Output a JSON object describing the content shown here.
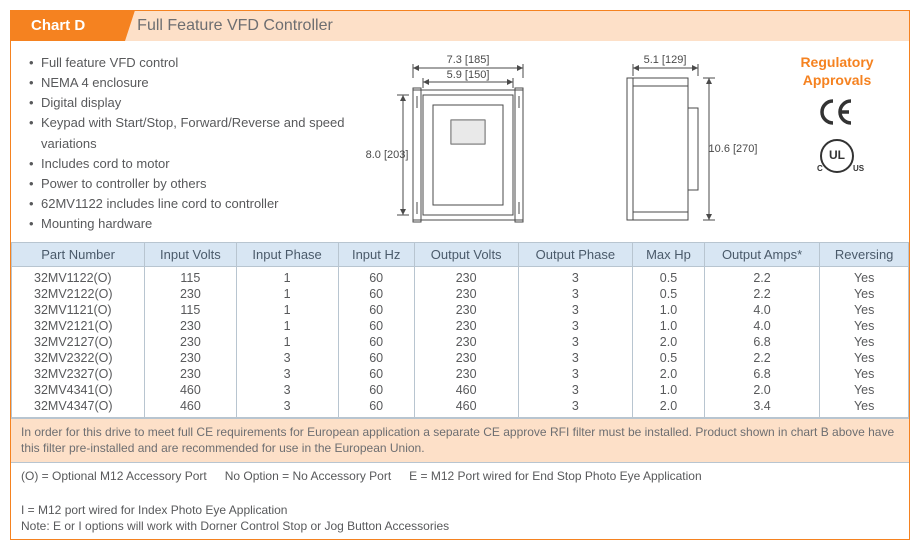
{
  "header": {
    "chart_label": "Chart D",
    "title": "Full Feature VFD Controller"
  },
  "features": [
    "Full feature VFD control",
    "NEMA 4 enclosure",
    "Digital display",
    "Keypad with Start/Stop, Forward/Reverse and speed variations",
    "Includes cord to motor",
    "Power to controller by others",
    "62MV1122 includes line cord to controller",
    "Mounting hardware"
  ],
  "dims": {
    "front_top": "7.3 [185]",
    "front_inner": "5.9 [150]",
    "front_height": "8.0 [203]",
    "side_width": "5.1 [129]",
    "side_height": "10.6 [270]"
  },
  "regulatory": {
    "heading_l1": "Regulatory",
    "heading_l2": "Approvals"
  },
  "table": {
    "columns": [
      "Part Number",
      "Input Volts",
      "Input Phase",
      "Input Hz",
      "Output Volts",
      "Output Phase",
      "Max Hp",
      "Output Amps*",
      "Reversing"
    ],
    "rows": [
      [
        "32MV1122(O)",
        "115",
        "1",
        "60",
        "230",
        "3",
        "0.5",
        "2.2",
        "Yes"
      ],
      [
        "32MV2122(O)",
        "230",
        "1",
        "60",
        "230",
        "3",
        "0.5",
        "2.2",
        "Yes"
      ],
      [
        "32MV1121(O)",
        "115",
        "1",
        "60",
        "230",
        "3",
        "1.0",
        "4.0",
        "Yes"
      ],
      [
        "32MV2121(O)",
        "230",
        "1",
        "60",
        "230",
        "3",
        "1.0",
        "4.0",
        "Yes"
      ],
      [
        "32MV2127(O)",
        "230",
        "1",
        "60",
        "230",
        "3",
        "2.0",
        "6.8",
        "Yes"
      ],
      [
        "32MV2322(O)",
        "230",
        "3",
        "60",
        "230",
        "3",
        "0.5",
        "2.2",
        "Yes"
      ],
      [
        "32MV2327(O)",
        "230",
        "3",
        "60",
        "230",
        "3",
        "2.0",
        "6.8",
        "Yes"
      ],
      [
        "32MV4341(O)",
        "460",
        "3",
        "60",
        "460",
        "3",
        "1.0",
        "2.0",
        "Yes"
      ],
      [
        "32MV4347(O)",
        "460",
        "3",
        "60",
        "460",
        "3",
        "2.0",
        "3.4",
        "Yes"
      ]
    ]
  },
  "ce_note": "In order for this drive to meet full CE requirements for European application a separate CE approve RFI filter must be installed.  Product shown in chart B above have this filter pre-installed and are recommended for use in the European Union.",
  "legend": {
    "items": [
      "(O) = Optional M12 Accessory Port",
      "No Option = No Accessory Port",
      "E = M12 Port wired for End Stop Photo Eye Application",
      "I = M12 port wired for Index Photo Eye Application"
    ],
    "note": "Note: E or I options will work with Dorner Control Stop or Jog Button Accessories"
  },
  "colors": {
    "accent": "#f58220",
    "accent_light": "#fde0c8",
    "table_header_bg": "#d8e6f3",
    "text": "#58595b"
  }
}
